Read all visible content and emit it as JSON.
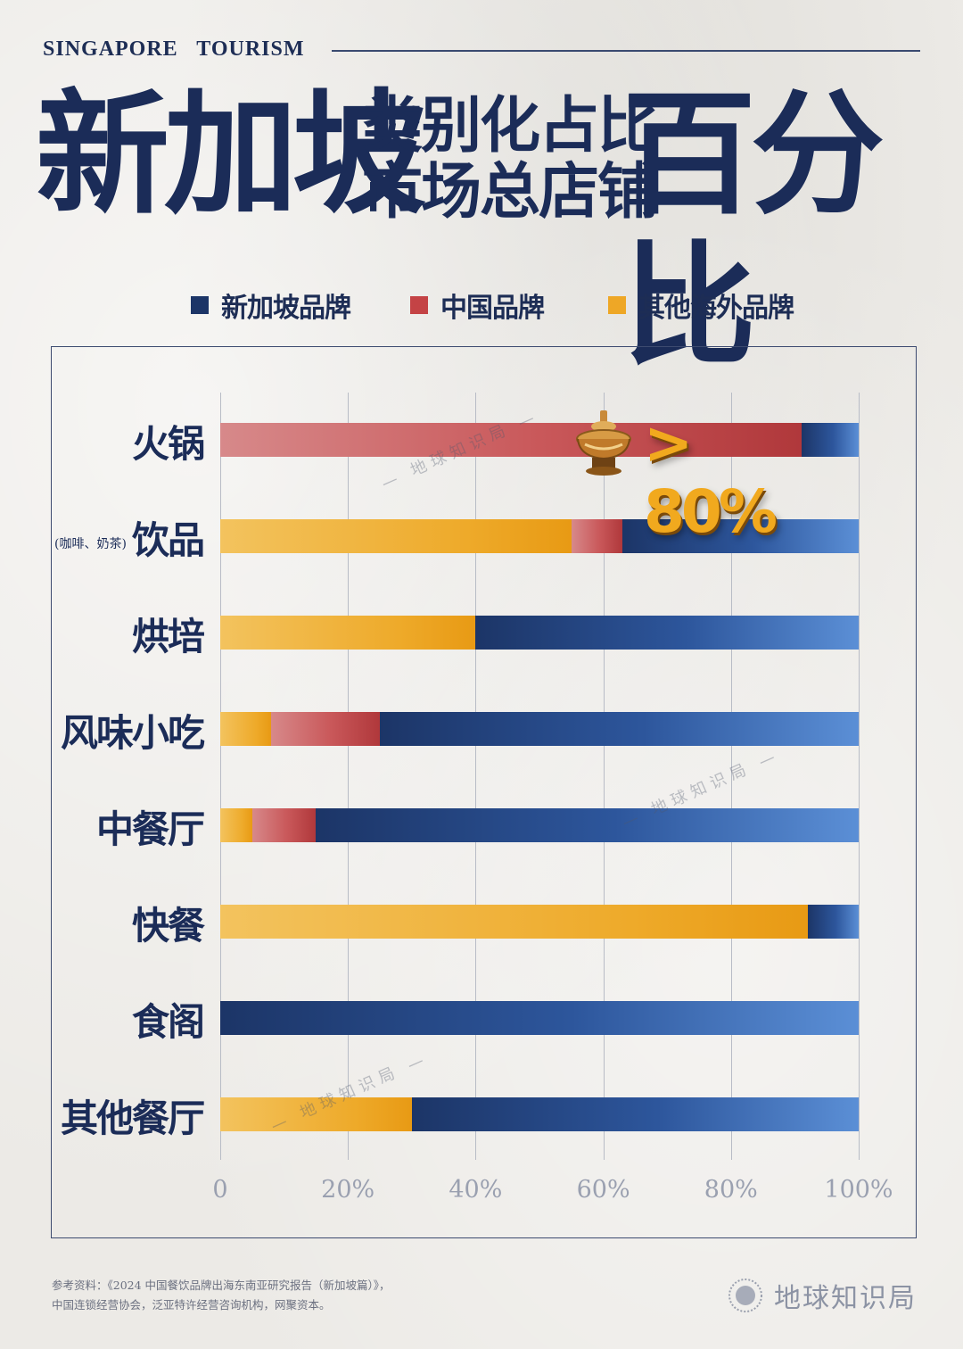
{
  "header": {
    "eyebrow": "SINGAPORE   TOURISM",
    "title_left": "新加坡",
    "title_mid_1": "类别化占比",
    "title_mid_2": "市场总店铺",
    "title_right": "百分比"
  },
  "legend": [
    {
      "label": "新加坡品牌",
      "color": "#1c3567"
    },
    {
      "label": "中国品牌",
      "color": "#c44345"
    },
    {
      "label": "其他海外品牌",
      "color": "#eea726"
    }
  ],
  "callout": {
    "text": "> 80%",
    "icon": "hotpot-icon"
  },
  "watermark": "— 地球知识局 —",
  "chart_data": {
    "type": "bar",
    "orientation": "horizontal",
    "stacked": true,
    "x_unit": "percent",
    "xlim": [
      0,
      100
    ],
    "ticks": [
      "0",
      "20%",
      "40%",
      "60%",
      "80%",
      "100%"
    ],
    "categories": [
      {
        "label": "火锅",
        "sub": ""
      },
      {
        "label": "饮品",
        "sub": "(咖啡、奶茶)"
      },
      {
        "label": "烘培",
        "sub": ""
      },
      {
        "label": "风味小吃",
        "sub": ""
      },
      {
        "label": "中餐厅",
        "sub": ""
      },
      {
        "label": "快餐",
        "sub": ""
      },
      {
        "label": "食阁",
        "sub": ""
      },
      {
        "label": "其他餐厅",
        "sub": ""
      }
    ],
    "series": [
      {
        "name": "其他海外品牌",
        "class": "seg-ov",
        "values": [
          0,
          55,
          40,
          8,
          5,
          92,
          0,
          30
        ]
      },
      {
        "name": "中国品牌",
        "class": "seg-cn",
        "values": [
          91,
          8,
          0,
          17,
          10,
          0,
          0,
          0
        ]
      },
      {
        "name": "新加坡品牌",
        "class": "seg-sg",
        "values": [
          9,
          37,
          60,
          75,
          85,
          8,
          100,
          70
        ]
      }
    ]
  },
  "footer": {
    "source_line_1": "参考资料：《2024 中国餐饮品牌出海东南亚研究报告（新加坡篇）》，",
    "source_line_2": "中国连锁经营协会，泛亚特许经营咨询机构，网聚资本。",
    "brand_name": "地球知识局",
    "brand_logo": "globe-logo-icon"
  }
}
